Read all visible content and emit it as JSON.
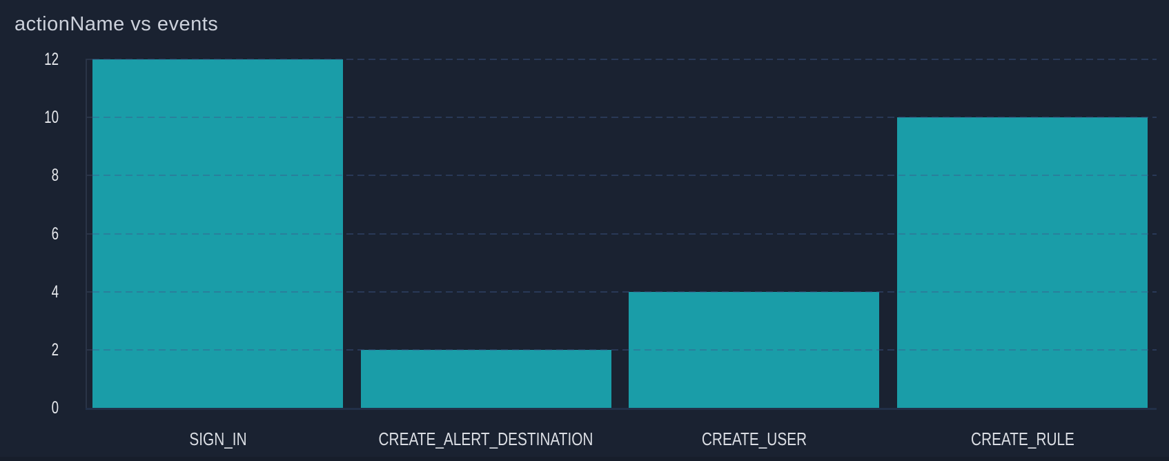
{
  "page": {
    "title": "actionName vs events"
  },
  "chart_data": {
    "type": "bar",
    "title": "actionName vs events",
    "categories": [
      "SIGN_IN",
      "CREATE_ALERT_DESTINATION",
      "CREATE_USER",
      "CREATE_RULE"
    ],
    "values": [
      12,
      2,
      4,
      10
    ],
    "xlabel": "actionName",
    "ylabel": "events",
    "ylim": [
      0,
      12
    ],
    "yticks": [
      0,
      2,
      4,
      6,
      8,
      10,
      12
    ],
    "grid": "horizontal-dashed",
    "legend": "none"
  },
  "colors": {
    "background": "#1A2231",
    "bar": "#1A9DA8",
    "gridline": "rgba(62,88,140,0.42)",
    "axis_line": "#2A3447",
    "baseline": "#223048",
    "title_text": "#CCD1DB",
    "tick_text": "#E7E9ED",
    "category_text": "#DBDEE4",
    "bottom_strip": "#171E2B"
  }
}
